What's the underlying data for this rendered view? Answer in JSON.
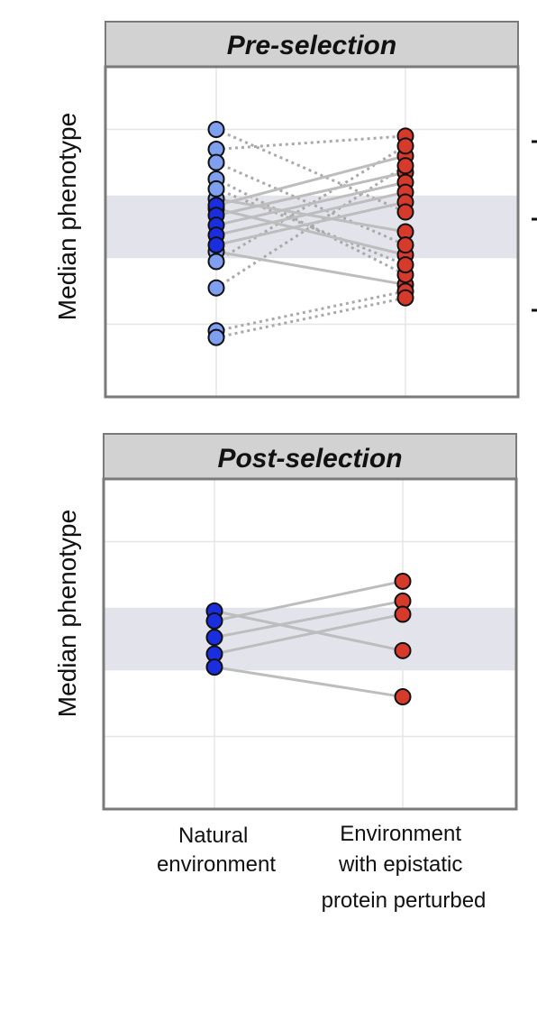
{
  "chart_data": [
    {
      "type": "scatter",
      "title": "Pre-selection",
      "ylabel": "Median phenotype",
      "categories": [
        "Natural environment",
        "Environment with epistatic protein perturbed"
      ],
      "ylim": [
        0,
        10
      ],
      "band": [
        4.2,
        6.1
      ],
      "grid": true,
      "gridlines_y": [
        2.2,
        8.1
      ],
      "colors": {
        "natural_light": "#7f9ff0",
        "natural_dark": "#1a2ee0",
        "perturbed": "#d63a2a",
        "solid_line": "#bdbdbd",
        "dotted_line": "#a9a9a9",
        "band": "#e3e3ec"
      },
      "series": [
        {
          "values": [
            5.8,
            7.3
          ],
          "line": "solid",
          "natural_shade": "dark"
        },
        {
          "values": [
            5.5,
            6.8
          ],
          "line": "solid",
          "natural_shade": "dark"
        },
        {
          "values": [
            5.2,
            6.5
          ],
          "line": "solid",
          "natural_shade": "dark"
        },
        {
          "values": [
            4.9,
            6.2
          ],
          "line": "solid",
          "natural_shade": "dark"
        },
        {
          "values": [
            4.6,
            5.9
          ],
          "line": "solid",
          "natural_shade": "dark"
        },
        {
          "values": [
            4.4,
            3.4
          ],
          "line": "solid",
          "natural_shade": "light"
        },
        {
          "values": [
            5.7,
            4.3
          ],
          "line": "solid",
          "natural_shade": "light"
        },
        {
          "values": [
            6.0,
            5.0
          ],
          "line": "solid",
          "natural_shade": "light"
        },
        {
          "values": [
            8.1,
            5.6
          ],
          "line": "dotted",
          "natural_shade": "light"
        },
        {
          "values": [
            7.5,
            7.9
          ],
          "line": "dotted",
          "natural_shade": "light"
        },
        {
          "values": [
            7.1,
            4.6
          ],
          "line": "dotted",
          "natural_shade": "light"
        },
        {
          "values": [
            6.6,
            3.7
          ],
          "line": "dotted",
          "natural_shade": "light"
        },
        {
          "values": [
            6.3,
            4.0
          ],
          "line": "dotted",
          "natural_shade": "light"
        },
        {
          "values": [
            4.1,
            7.6
          ],
          "line": "dotted",
          "natural_shade": "light"
        },
        {
          "values": [
            3.3,
            7.0
          ],
          "line": "dotted",
          "natural_shade": "light"
        },
        {
          "values": [
            2.0,
            3.2
          ],
          "line": "dotted",
          "natural_shade": "light"
        },
        {
          "values": [
            1.8,
            3.0
          ],
          "line": "dotted",
          "natural_shade": "light"
        }
      ]
    },
    {
      "type": "scatter",
      "title": "Post-selection",
      "ylabel": "Median phenotype",
      "categories": [
        "Natural environment",
        "Environment with epistatic protein perturbed"
      ],
      "ylim": [
        0,
        10
      ],
      "band": [
        4.2,
        6.1
      ],
      "grid": true,
      "gridlines_y": [
        2.2,
        8.1
      ],
      "colors": {
        "natural_light": "#7f9ff0",
        "natural_dark": "#1a2ee0",
        "perturbed": "#d63a2a",
        "solid_line": "#bdbdbd",
        "dotted_line": "#a9a9a9",
        "band": "#e3e3ec"
      },
      "series": [
        {
          "values": [
            6.0,
            4.8
          ],
          "line": "solid",
          "natural_shade": "dark"
        },
        {
          "values": [
            5.7,
            6.9
          ],
          "line": "solid",
          "natural_shade": "dark"
        },
        {
          "values": [
            5.2,
            6.3
          ],
          "line": "solid",
          "natural_shade": "dark"
        },
        {
          "values": [
            4.7,
            5.9
          ],
          "line": "solid",
          "natural_shade": "dark"
        },
        {
          "values": [
            4.3,
            3.4
          ],
          "line": "solid",
          "natural_shade": "dark"
        }
      ]
    }
  ]
}
